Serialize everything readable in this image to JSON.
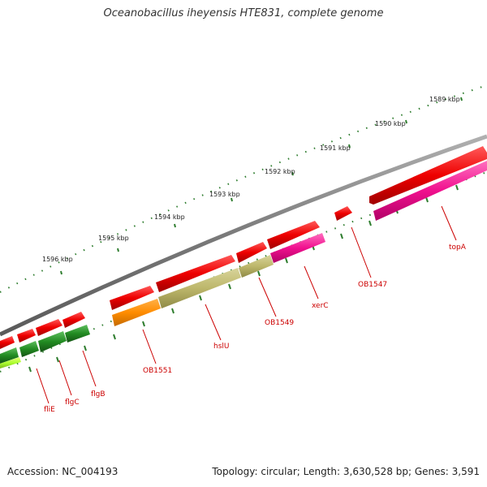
{
  "title": "Oceanobacillus iheyensis HTE831, complete genome",
  "footer": {
    "accession": "Accession: NC_004193",
    "summary": "Topology: circular; Length: 3,630,528 bp; Genes: 3,591"
  },
  "colors": {
    "backbone": "#808080",
    "forward_cds": "#ee0000",
    "tick": "#2e7d2e",
    "label": "#cc0000"
  },
  "kbp_labels": [
    "1589 kbp",
    "1590 kbp",
    "1591 kbp",
    "1592 kbp",
    "1593 kbp",
    "1594 kbp",
    "1595 kbp",
    "1596 kbp"
  ],
  "gene_labels": [
    "topA",
    "OB1547",
    "xerC",
    "OB1549",
    "hslU",
    "OB1551",
    "flgB",
    "flgC",
    "fliE"
  ]
}
